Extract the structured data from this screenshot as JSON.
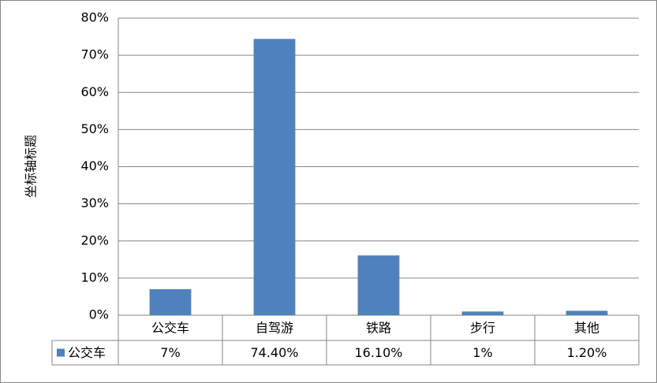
{
  "chart_data": {
    "type": "bar",
    "y_axis_label": "坐标轴标题",
    "categories": [
      "公交车",
      "自驾游",
      "铁路",
      "步行",
      "其他"
    ],
    "series": [
      {
        "name": "公交车",
        "color": "#4f81bd",
        "values": [
          7,
          74.4,
          16.1,
          1,
          1.2
        ],
        "value_labels": [
          "7%",
          "74.40%",
          "16.10%",
          "1%",
          "1.20%"
        ]
      }
    ],
    "ylim": [
      0,
      80
    ],
    "yticks": [
      {
        "value": 0,
        "label": "0%"
      },
      {
        "value": 10,
        "label": "10%"
      },
      {
        "value": 20,
        "label": "20%"
      },
      {
        "value": 30,
        "label": "30%"
      },
      {
        "value": 40,
        "label": "40%"
      },
      {
        "value": 50,
        "label": "50%"
      },
      {
        "value": 60,
        "label": "60%"
      },
      {
        "value": 70,
        "label": "70%"
      },
      {
        "value": 80,
        "label": "80%"
      }
    ],
    "grid": true
  }
}
